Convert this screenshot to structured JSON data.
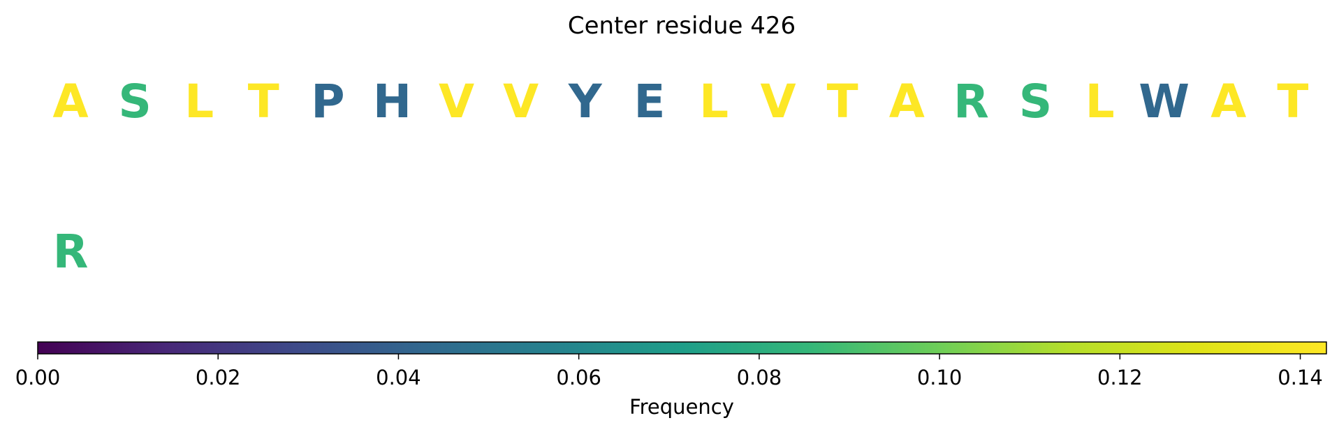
{
  "chart_data": {
    "type": "heatmap",
    "title": "Center residue 426",
    "rows": [
      {
        "residues": [
          {
            "letter": "A",
            "color": "#fde725"
          },
          {
            "letter": "S",
            "color": "#35b779"
          },
          {
            "letter": "L",
            "color": "#fde725"
          },
          {
            "letter": "T",
            "color": "#fde725"
          },
          {
            "letter": "P",
            "color": "#31688e"
          },
          {
            "letter": "H",
            "color": "#31688e"
          },
          {
            "letter": "V",
            "color": "#fde725"
          },
          {
            "letter": "V",
            "color": "#fde725"
          },
          {
            "letter": "Y",
            "color": "#31688e"
          },
          {
            "letter": "E",
            "color": "#31688e"
          },
          {
            "letter": "L",
            "color": "#fde725"
          },
          {
            "letter": "V",
            "color": "#fde725"
          },
          {
            "letter": "T",
            "color": "#fde725"
          },
          {
            "letter": "A",
            "color": "#fde725"
          },
          {
            "letter": "R",
            "color": "#35b779"
          },
          {
            "letter": "S",
            "color": "#35b779"
          },
          {
            "letter": "L",
            "color": "#fde725"
          },
          {
            "letter": "W",
            "color": "#31688e"
          },
          {
            "letter": "A",
            "color": "#fde725"
          },
          {
            "letter": "T",
            "color": "#fde725"
          }
        ]
      },
      {
        "residues": [
          {
            "letter": "R",
            "color": "#35b779"
          }
        ]
      }
    ],
    "colorbar": {
      "label": "Frequency",
      "colormap": "viridis",
      "range": [
        0.0,
        0.1429
      ],
      "ticks": [
        0.0,
        0.02,
        0.04,
        0.06,
        0.08,
        0.1,
        0.12,
        0.14
      ],
      "tick_labels": [
        "0.00",
        "0.02",
        "0.04",
        "0.06",
        "0.08",
        "0.10",
        "0.12",
        "0.14"
      ]
    }
  }
}
